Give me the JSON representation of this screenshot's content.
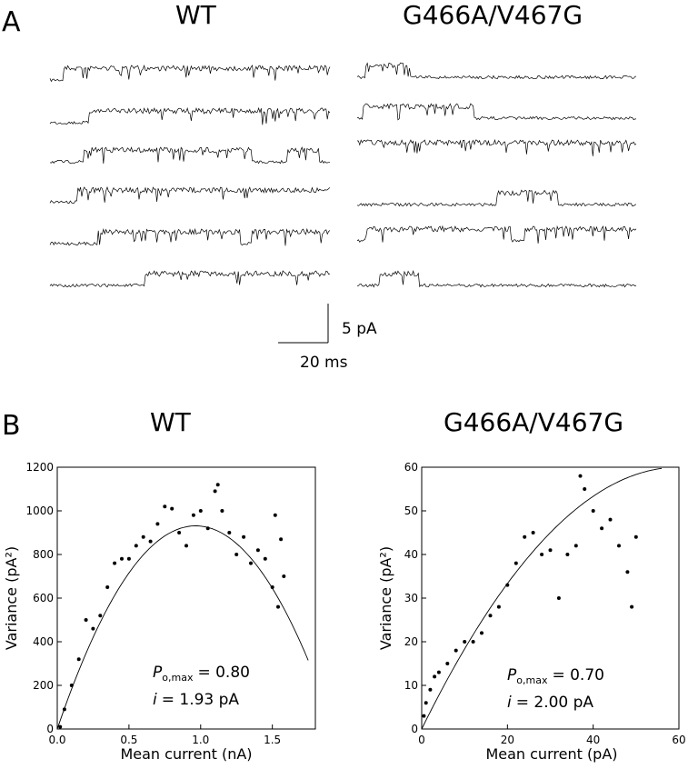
{
  "panel_a": {
    "letter": "A",
    "left_title": "WT",
    "right_title": "G466A/V467G",
    "scale_bar": {
      "current_label": "5 pA",
      "time_label": "20 ms"
    }
  },
  "panel_b": {
    "letter": "B"
  },
  "chart_data": [
    {
      "type": "scatter",
      "title": "WT",
      "xlabel": "Mean current (nA)",
      "ylabel": "Variance (pA²)",
      "xlim": [
        0,
        1.8
      ],
      "ylim": [
        0,
        1200
      ],
      "xticks": [
        0.0,
        0.5,
        1.0,
        1.5
      ],
      "xtick_labels": [
        "0.0",
        "0.5",
        "1.0",
        "1.5"
      ],
      "yticks": [
        0,
        200,
        400,
        600,
        800,
        1000,
        1200
      ],
      "ytick_labels": [
        "0",
        "200",
        "400",
        "600",
        "800",
        "1000",
        "1200"
      ],
      "grid": false,
      "annotation": {
        "po_symbol": "P",
        "po_subscript": "o,max",
        "po_value": "= 0.80",
        "i_symbol": "i",
        "i_value": "= 1.93 pA"
      },
      "fit": {
        "i": 1.93,
        "N_thousands": 1.0,
        "x_end": 1.75
      },
      "points": [
        [
          0.02,
          10
        ],
        [
          0.05,
          90
        ],
        [
          0.1,
          200
        ],
        [
          0.15,
          320
        ],
        [
          0.2,
          500
        ],
        [
          0.25,
          460
        ],
        [
          0.3,
          520
        ],
        [
          0.35,
          650
        ],
        [
          0.4,
          760
        ],
        [
          0.45,
          780
        ],
        [
          0.5,
          780
        ],
        [
          0.55,
          840
        ],
        [
          0.6,
          880
        ],
        [
          0.65,
          860
        ],
        [
          0.7,
          940
        ],
        [
          0.75,
          1020
        ],
        [
          0.8,
          1010
        ],
        [
          0.85,
          900
        ],
        [
          0.9,
          840
        ],
        [
          0.95,
          980
        ],
        [
          1.0,
          1000
        ],
        [
          1.05,
          920
        ],
        [
          1.1,
          1090
        ],
        [
          1.12,
          1120
        ],
        [
          1.15,
          1000
        ],
        [
          1.2,
          900
        ],
        [
          1.25,
          800
        ],
        [
          1.3,
          880
        ],
        [
          1.35,
          760
        ],
        [
          1.4,
          820
        ],
        [
          1.45,
          780
        ],
        [
          1.5,
          650
        ],
        [
          1.52,
          980
        ],
        [
          1.54,
          560
        ],
        [
          1.56,
          870
        ],
        [
          1.58,
          700
        ]
      ]
    },
    {
      "type": "scatter",
      "title": "G466A/V467G",
      "xlabel": "Mean current (pA)",
      "ylabel": "Variance (pA²)",
      "xlim": [
        0,
        60
      ],
      "ylim": [
        0,
        60
      ],
      "xticks": [
        0,
        20,
        40,
        60
      ],
      "xtick_labels": [
        "0",
        "20",
        "40",
        "60"
      ],
      "yticks": [
        0,
        10,
        20,
        30,
        40,
        50,
        60
      ],
      "ytick_labels": [
        "0",
        "10",
        "20",
        "30",
        "40",
        "50",
        "60"
      ],
      "grid": false,
      "annotation": {
        "po_symbol": "P",
        "po_subscript": "o,max",
        "po_value": "= 0.70",
        "i_symbol": "i",
        "i_value": "= 2.00 pA"
      },
      "fit": {
        "i": 2.0,
        "N": 60,
        "x_end": 56
      },
      "points": [
        [
          0.5,
          3
        ],
        [
          1,
          6
        ],
        [
          2,
          9
        ],
        [
          3,
          12
        ],
        [
          4,
          13
        ],
        [
          6,
          15
        ],
        [
          8,
          18
        ],
        [
          10,
          20
        ],
        [
          12,
          20
        ],
        [
          14,
          22
        ],
        [
          16,
          26
        ],
        [
          18,
          28
        ],
        [
          20,
          33
        ],
        [
          22,
          38
        ],
        [
          24,
          44
        ],
        [
          26,
          45
        ],
        [
          28,
          40
        ],
        [
          30,
          41
        ],
        [
          32,
          30
        ],
        [
          34,
          40
        ],
        [
          36,
          42
        ],
        [
          37,
          58
        ],
        [
          38,
          55
        ],
        [
          40,
          50
        ],
        [
          42,
          46
        ],
        [
          44,
          48
        ],
        [
          46,
          42
        ],
        [
          48,
          36
        ],
        [
          50,
          44
        ],
        [
          49,
          28
        ]
      ]
    }
  ]
}
